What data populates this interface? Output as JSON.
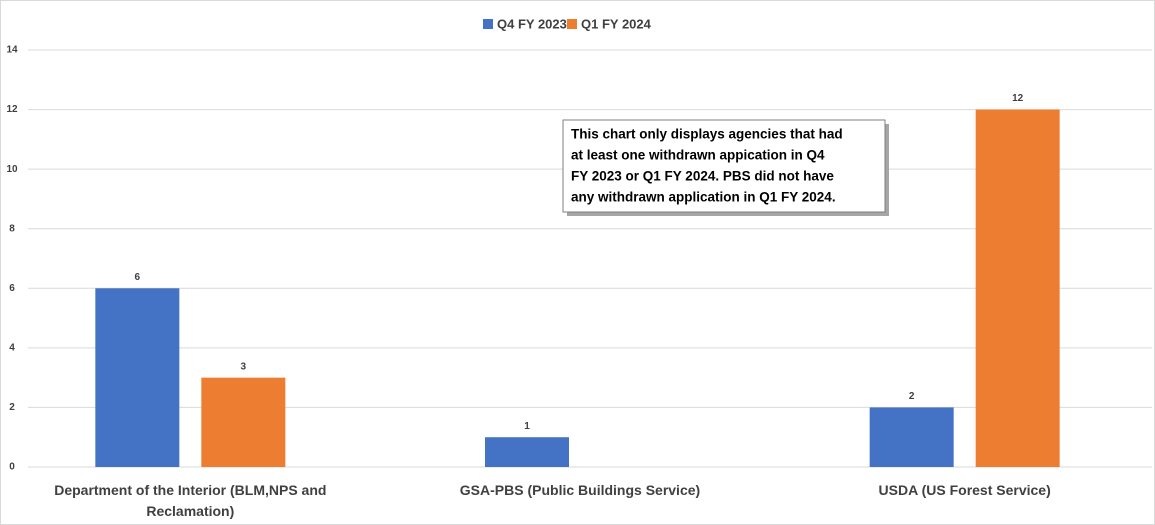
{
  "chart_data": {
    "type": "bar",
    "categories": [
      "Department of the Interior (BLM,NPS and Reclamation)",
      "GSA-PBS (Public Buildings Service)",
      "USDA (US Forest Service)"
    ],
    "series": [
      {
        "name": "Q4 FY 2023",
        "color": "#4472c4",
        "values": [
          6,
          1,
          2
        ]
      },
      {
        "name": "Q1 FY 2024",
        "color": "#ed7d31",
        "values": [
          3,
          null,
          12
        ]
      }
    ],
    "ylim": [
      0,
      14
    ],
    "yticks": [
      0,
      2,
      4,
      6,
      8,
      10,
      12,
      14
    ],
    "grid": true,
    "legend": "top",
    "annotation": [
      "This chart only displays agencies that had",
      "at least one withdrawn appication in Q4",
      "FY 2023 or Q1 FY 2024. PBS did not have",
      "any withdrawn application in Q1 FY 2024."
    ]
  }
}
